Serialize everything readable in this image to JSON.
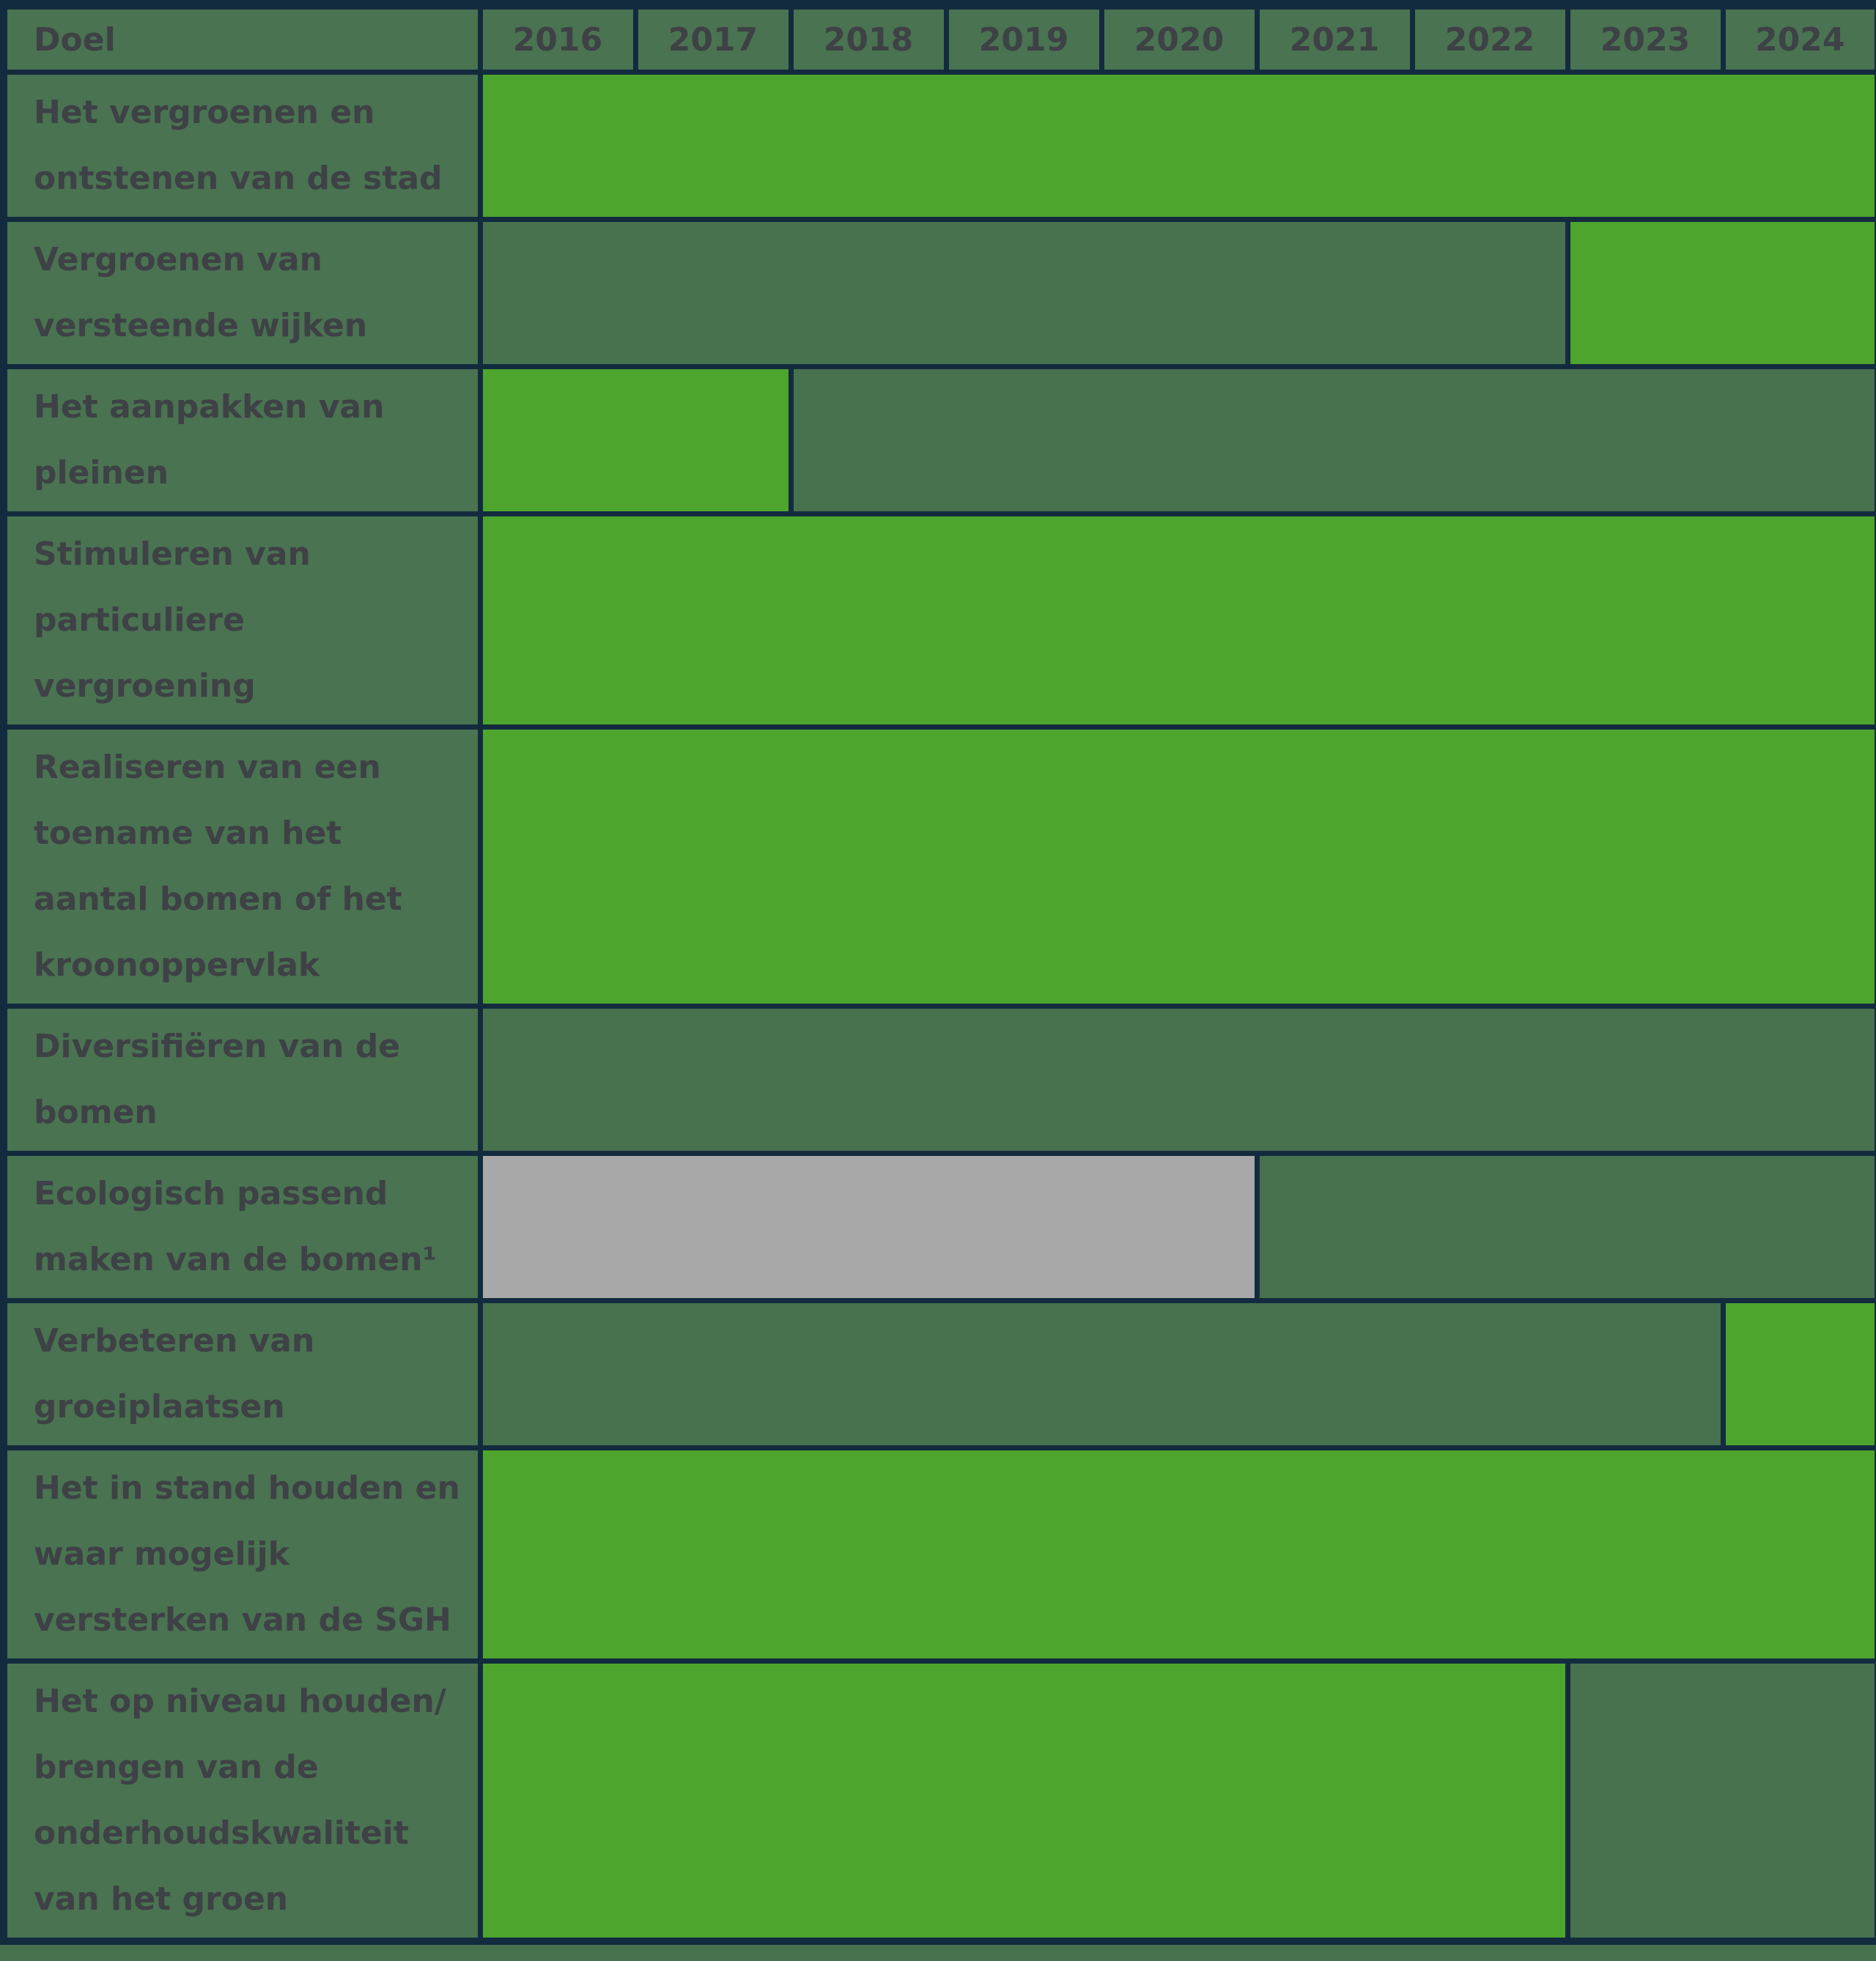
{
  "chart_data": {
    "type": "table",
    "subtype": "gantt-planning-table",
    "columns": [
      "Doel",
      "2016",
      "2017",
      "2018",
      "2019",
      "2020",
      "2021",
      "2022",
      "2023",
      "2024"
    ],
    "years": [
      2016,
      2017,
      2018,
      2019,
      2020,
      2021,
      2022,
      2023,
      2024
    ],
    "colors": {
      "bright_green": "#4DA52E",
      "dark_green": "#48714E",
      "gray": "#A8A8A8",
      "header_background": "#4A7351",
      "border_navy": "#132B3E",
      "text": "#3E4145"
    },
    "rows": [
      {
        "doel": "Het vergroenen en\nontstenen van de stad",
        "lines": 2,
        "segments": [
          {
            "from": 2016,
            "to": 2024,
            "color": "bright_green"
          }
        ]
      },
      {
        "doel": "Vergroenen van\nversteende wijken",
        "lines": 2,
        "segments": [
          {
            "from": 2016,
            "to": 2022,
            "color": "dark_green"
          },
          {
            "from": 2023,
            "to": 2024,
            "color": "bright_green"
          }
        ]
      },
      {
        "doel": "Het aanpakken van\npleinen",
        "lines": 2,
        "segments": [
          {
            "from": 2016,
            "to": 2017,
            "color": "bright_green"
          },
          {
            "from": 2018,
            "to": 2024,
            "color": "dark_green"
          }
        ]
      },
      {
        "doel": "Stimuleren van\nparticuliere\nvergroening",
        "lines": 3,
        "segments": [
          {
            "from": 2016,
            "to": 2024,
            "color": "bright_green"
          }
        ]
      },
      {
        "doel": "Realiseren van een\ntoename van het\naantal bomen of het\nkroonoppervlak",
        "lines": 4,
        "segments": [
          {
            "from": 2016,
            "to": 2024,
            "color": "bright_green"
          }
        ]
      },
      {
        "doel": "Diversifiëren van de\nbomen",
        "lines": 2,
        "segments": [
          {
            "from": 2016,
            "to": 2024,
            "color": "dark_green"
          }
        ]
      },
      {
        "doel": "Ecologisch passend\nmaken van de bomen¹",
        "lines": 2,
        "segments": [
          {
            "from": 2016,
            "to": 2020,
            "color": "gray"
          },
          {
            "from": 2021,
            "to": 2024,
            "color": "dark_green"
          }
        ]
      },
      {
        "doel": "Verbeteren van\ngroeiplaatsen",
        "lines": 2,
        "segments": [
          {
            "from": 2016,
            "to": 2023,
            "color": "dark_green"
          },
          {
            "from": 2024,
            "to": 2024,
            "color": "bright_green"
          }
        ]
      },
      {
        "doel": "Het in stand houden en\nwaar mogelijk\nversterken van de SGH",
        "lines": 3,
        "segments": [
          {
            "from": 2016,
            "to": 2024,
            "color": "bright_green"
          }
        ]
      },
      {
        "doel": "Het op niveau houden/\nbrengen van de\nonderhoudskwaliteit\nvan het groen",
        "lines": 4,
        "segments": [
          {
            "from": 2016,
            "to": 2022,
            "color": "bright_green"
          },
          {
            "from": 2023,
            "to": 2024,
            "color": "dark_green"
          }
        ]
      }
    ]
  }
}
